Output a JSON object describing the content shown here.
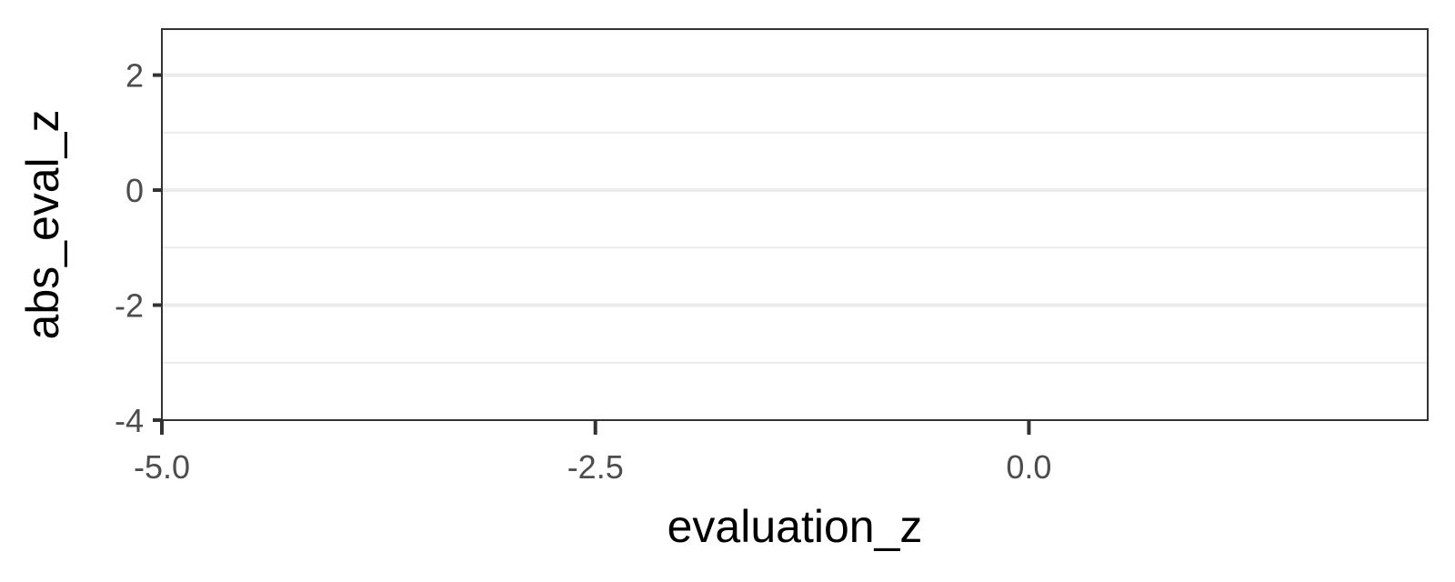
{
  "chart_data": {
    "type": "scatter",
    "title": "",
    "xlabel": "evaluation_z",
    "ylabel": "abs_eval_z",
    "xlim": [
      -5.0,
      2.3
    ],
    "ylim": [
      -4.0,
      2.8
    ],
    "x_ticks": [
      -5.0,
      -2.5,
      0.0
    ],
    "x_tick_labels": [
      "-5.0",
      "-2.5",
      "0.0"
    ],
    "y_ticks": [
      -4,
      -2,
      0,
      2
    ],
    "y_tick_labels": [
      "-4",
      "-2",
      "0",
      "2"
    ],
    "y_minor_gridlines": [
      -3,
      -1,
      1
    ],
    "x_gridlines": false,
    "y_gridlines": true,
    "legend": "none",
    "series": [],
    "colors": {
      "grid_major": "#ebebeb",
      "grid_minor": "#ebebeb",
      "panel_border": "#333333",
      "tick_text": "#4d4d4d",
      "title_text": "#000000"
    }
  }
}
